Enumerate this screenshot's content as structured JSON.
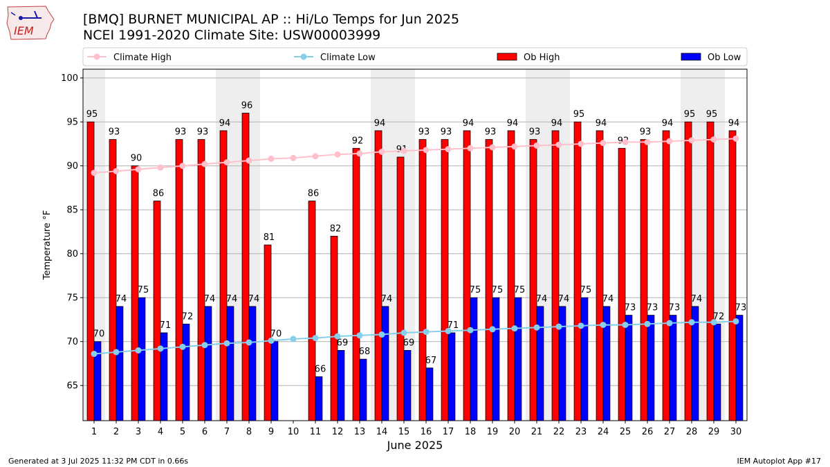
{
  "header": {
    "logo_text": "IEM",
    "title": "[BMQ] BURNET MUNICIPAL AP :: Hi/Lo Temps for Jun 2025",
    "subtitle": "NCEI 1991-2020 Climate Site: USW00003999"
  },
  "footer": {
    "generated": "Generated at 3 Jul 2025 11:32 PM CDT in 0.66s",
    "app": "IEM Autoplot App #17"
  },
  "chart_data": {
    "type": "bar",
    "xlabel": "June 2025",
    "ylabel": "Temperature °F",
    "ylim": [
      61,
      101
    ],
    "yticks": [
      65,
      70,
      75,
      80,
      85,
      90,
      95,
      100
    ],
    "categories": [
      "1",
      "2",
      "3",
      "4",
      "5",
      "6",
      "7",
      "8",
      "9",
      "10",
      "11",
      "12",
      "13",
      "14",
      "15",
      "16",
      "17",
      "18",
      "19",
      "20",
      "21",
      "22",
      "23",
      "24",
      "25",
      "26",
      "27",
      "28",
      "29",
      "30"
    ],
    "weekend_days": [
      1,
      7,
      8,
      14,
      15,
      21,
      22,
      28,
      29
    ],
    "grid": "horizontal",
    "legend_position": "top",
    "series": [
      {
        "name": "Ob High",
        "kind": "bar",
        "color": "#ff0000",
        "values": [
          95,
          93,
          90,
          86,
          93,
          93,
          94,
          96,
          81,
          null,
          86,
          82,
          92,
          94,
          91,
          93,
          93,
          94,
          93,
          94,
          93,
          94,
          95,
          94,
          92,
          93,
          94,
          95,
          95,
          94
        ]
      },
      {
        "name": "Ob Low",
        "kind": "bar",
        "color": "#0000ff",
        "values": [
          70,
          74,
          75,
          71,
          72,
          74,
          74,
          74,
          70,
          null,
          66,
          69,
          68,
          74,
          69,
          67,
          71,
          75,
          75,
          75,
          74,
          74,
          75,
          74,
          73,
          73,
          73,
          74,
          72,
          73
        ]
      },
      {
        "name": "Climate High",
        "kind": "line",
        "color": "#ffc0cb",
        "values": [
          89.2,
          89.4,
          89.6,
          89.8,
          90.0,
          90.2,
          90.4,
          90.6,
          90.8,
          90.9,
          91.1,
          91.3,
          91.4,
          91.6,
          91.7,
          91.8,
          91.9,
          92.0,
          92.1,
          92.2,
          92.3,
          92.4,
          92.5,
          92.6,
          92.7,
          92.7,
          92.8,
          92.9,
          93.0,
          93.1
        ]
      },
      {
        "name": "Climate Low",
        "kind": "line",
        "color": "#87ceeb",
        "values": [
          68.6,
          68.8,
          69.0,
          69.2,
          69.4,
          69.6,
          69.8,
          69.9,
          70.1,
          70.3,
          70.4,
          70.6,
          70.7,
          70.8,
          71.0,
          71.1,
          71.2,
          71.3,
          71.4,
          71.5,
          71.6,
          71.7,
          71.8,
          71.9,
          71.9,
          72.0,
          72.1,
          72.2,
          72.2,
          72.3
        ]
      }
    ]
  }
}
